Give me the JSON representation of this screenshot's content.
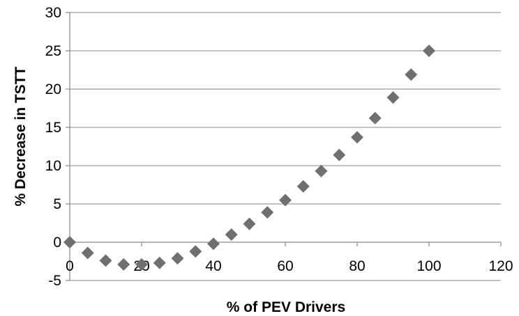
{
  "chart_data": {
    "type": "scatter",
    "title": "",
    "xlabel": "% of PEV Drivers",
    "ylabel": "% Decrease in TSTT",
    "xlim": [
      0,
      120
    ],
    "ylim": [
      -5,
      30
    ],
    "x_ticks": [
      "0",
      "20",
      "40",
      "60",
      "80",
      "100",
      "120"
    ],
    "y_ticks": [
      "30",
      "25",
      "20",
      "15",
      "10",
      "5",
      "0",
      "-5"
    ],
    "grid": "horizontal",
    "marker": "diamond",
    "marker_color": "#6f6f6f",
    "points": [
      {
        "x": 0,
        "y": 0.0
      },
      {
        "x": 5,
        "y": -1.4
      },
      {
        "x": 10,
        "y": -2.4
      },
      {
        "x": 15,
        "y": -2.9
      },
      {
        "x": 20,
        "y": -2.9
      },
      {
        "x": 25,
        "y": -2.7
      },
      {
        "x": 30,
        "y": -2.1
      },
      {
        "x": 35,
        "y": -1.2
      },
      {
        "x": 40,
        "y": -0.2
      },
      {
        "x": 45,
        "y": 1.0
      },
      {
        "x": 50,
        "y": 2.4
      },
      {
        "x": 55,
        "y": 3.9
      },
      {
        "x": 60,
        "y": 5.5
      },
      {
        "x": 65,
        "y": 7.3
      },
      {
        "x": 70,
        "y": 9.3
      },
      {
        "x": 75,
        "y": 11.4
      },
      {
        "x": 80,
        "y": 13.7
      },
      {
        "x": 85,
        "y": 16.2
      },
      {
        "x": 90,
        "y": 18.9
      },
      {
        "x": 95,
        "y": 21.9
      },
      {
        "x": 100,
        "y": 25.0
      }
    ]
  }
}
